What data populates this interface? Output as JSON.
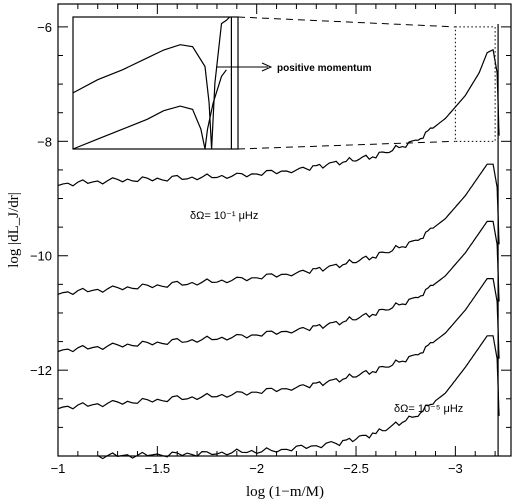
{
  "chart_data": {
    "type": "line",
    "xlabel": "log (1−m/M)",
    "ylabel": "log |dL_J/dr|",
    "xlim": [
      -1.0,
      -3.28
    ],
    "ylim": [
      -13.5,
      -5.6
    ],
    "x_ticks": [
      -1,
      -1.5,
      -2,
      -2.5,
      -3
    ],
    "x_tick_labels": [
      "−1",
      "−1.5",
      "−2",
      "−2.5",
      "−3"
    ],
    "y_ticks": [
      -6,
      -8,
      -10,
      -12
    ],
    "y_tick_labels": [
      "−6",
      "−8",
      "−10",
      "−12"
    ],
    "grid": false,
    "legend": "none",
    "series": [
      {
        "label": "δΩ= 10⁻¹ μHz",
        "x": [
          -1.0,
          -1.3,
          -1.6,
          -1.9,
          -2.2,
          -2.4,
          -2.6,
          -2.8,
          -2.95,
          -3.05,
          -3.12,
          -3.16,
          -3.19,
          -3.21,
          -3.22
        ],
        "y": [
          -8.75,
          -8.68,
          -8.65,
          -8.6,
          -8.5,
          -8.38,
          -8.25,
          -8.0,
          -7.6,
          -7.2,
          -6.8,
          -6.45,
          -6.4,
          -6.8,
          -7.9
        ]
      },
      {
        "x": [
          -1.0,
          -1.3,
          -1.6,
          -1.9,
          -2.2,
          -2.4,
          -2.6,
          -2.8,
          -2.95,
          -3.05,
          -3.12,
          -3.16,
          -3.19,
          -3.21,
          -3.22
        ],
        "y": [
          -10.65,
          -10.57,
          -10.5,
          -10.42,
          -10.3,
          -10.18,
          -10.0,
          -9.75,
          -9.35,
          -8.95,
          -8.6,
          -8.4,
          -8.4,
          -8.8,
          -9.8
        ]
      },
      {
        "x": [
          -1.0,
          -1.3,
          -1.6,
          -1.9,
          -2.2,
          -2.4,
          -2.6,
          -2.8,
          -2.95,
          -3.05,
          -3.12,
          -3.16,
          -3.19,
          -3.21,
          -3.22
        ],
        "y": [
          -11.65,
          -11.57,
          -11.5,
          -11.42,
          -11.3,
          -11.18,
          -11.0,
          -10.75,
          -10.35,
          -9.95,
          -9.6,
          -9.4,
          -9.4,
          -9.8,
          -10.8
        ]
      },
      {
        "x": [
          -1.0,
          -1.3,
          -1.6,
          -1.9,
          -2.2,
          -2.4,
          -2.6,
          -2.8,
          -2.95,
          -3.05,
          -3.12,
          -3.16,
          -3.19,
          -3.21,
          -3.22
        ],
        "y": [
          -12.65,
          -12.57,
          -12.5,
          -12.42,
          -12.3,
          -12.18,
          -12.0,
          -11.75,
          -11.35,
          -10.95,
          -10.6,
          -10.4,
          -10.4,
          -10.8,
          -11.8
        ]
      },
      {
        "label": "δΩ= 10⁻⁵ μHz",
        "x": [
          -1.2,
          -1.5,
          -1.8,
          -2.1,
          -2.4,
          -2.6,
          -2.8,
          -2.95,
          -3.05,
          -3.12,
          -3.16,
          -3.19,
          -3.21,
          -3.22
        ],
        "y": [
          -13.5,
          -13.48,
          -13.45,
          -13.4,
          -13.28,
          -13.1,
          -12.8,
          -12.4,
          -11.95,
          -11.6,
          -11.4,
          -11.4,
          -11.8,
          -12.8
        ]
      }
    ],
    "annotations": [
      {
        "text": "δΩ= 10⁻¹ μHz",
        "x": -1.7,
        "y": -9.08
      },
      {
        "text": "δΩ= 10⁻⁵ μHz",
        "x": -2.7,
        "y": -12.7
      },
      {
        "text": "positive momentum",
        "inset": true
      }
    ],
    "inset": {
      "zoom_region": {
        "xlim": [
          -3.0,
          -3.2
        ],
        "ylim": [
          -8.0,
          -6.0
        ]
      },
      "arrow_label": "positive momentum"
    }
  }
}
